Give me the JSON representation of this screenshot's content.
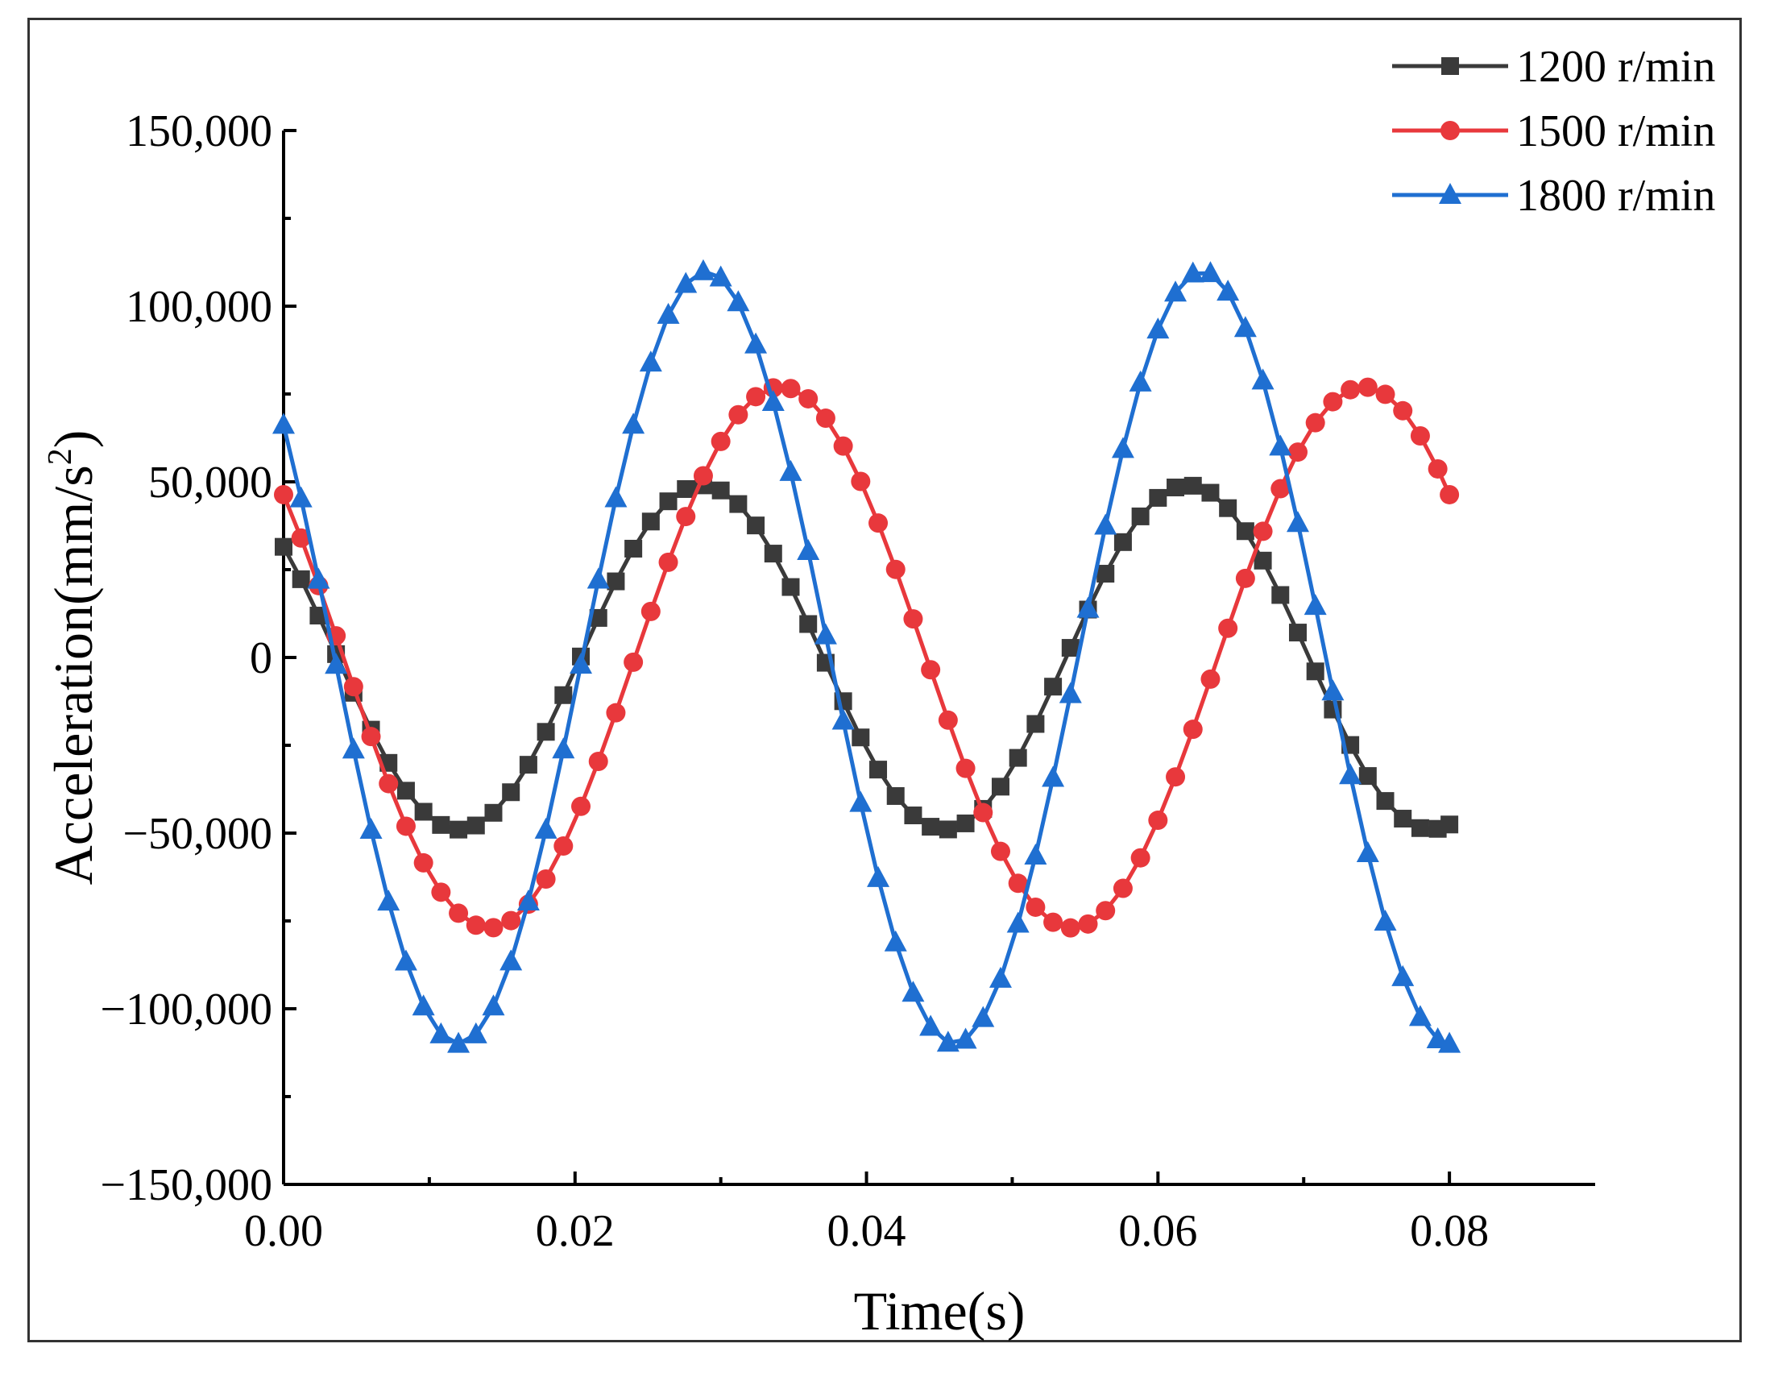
{
  "chart_data": {
    "type": "line",
    "title": "",
    "xlabel": "Time(s)",
    "ylabel_main": "Acceleration(mm/s",
    "ylabel_sup": "2",
    "ylabel_close": ")",
    "xlim": [
      0,
      0.09
    ],
    "ylim": [
      -150000,
      150000
    ],
    "x_ticks": [
      0,
      0.02,
      0.04,
      0.06,
      0.08
    ],
    "x_tick_labels": [
      "0.00",
      "0.02",
      "0.04",
      "0.06",
      "0.08"
    ],
    "y_ticks": [
      -150000,
      -100000,
      -50000,
      0,
      50000,
      100000,
      150000
    ],
    "y_tick_labels": [
      "−150,000",
      "−100,000",
      "−50,000",
      "0",
      "50,000",
      "100,000",
      "150,000"
    ],
    "legend_position": "top-right",
    "grid": false,
    "series": [
      {
        "name": "1200 r/min",
        "color": "#3a3a3a",
        "marker": "square",
        "freq_hz": 30,
        "amplitude": 49000,
        "phase_deg": 50,
        "x": [
          0,
          0.0012,
          0.0024,
          0.0036,
          0.0048,
          0.006,
          0.0072,
          0.0084,
          0.0096,
          0.0108,
          0.012,
          0.0132,
          0.0144,
          0.0156,
          0.0168,
          0.018,
          0.0192,
          0.0204,
          0.0216,
          0.0228,
          0.024,
          0.0252,
          0.0264,
          0.0276,
          0.0288,
          0.03,
          0.0312,
          0.0324,
          0.0336,
          0.0348,
          0.036,
          0.0372,
          0.0384,
          0.0396,
          0.0408,
          0.042,
          0.0432,
          0.0444,
          0.0456,
          0.0468,
          0.048,
          0.0492,
          0.0504,
          0.0516,
          0.0528,
          0.054,
          0.0552,
          0.0564,
          0.0576,
          0.0588,
          0.06,
          0.0612,
          0.0624,
          0.0636,
          0.0648,
          0.066,
          0.0672,
          0.0684,
          0.0696,
          0.0708,
          0.072,
          0.0732,
          0.0744,
          0.0756,
          0.0768,
          0.078,
          0.0792,
          0.08
        ]
      },
      {
        "name": "1500 r/min",
        "color": "#e8383c",
        "marker": "circle",
        "freq_hz": 25,
        "amplitude": 77000,
        "phase_deg": 53,
        "x": [
          0,
          0.0012,
          0.0024,
          0.0036,
          0.0048,
          0.006,
          0.0072,
          0.0084,
          0.0096,
          0.0108,
          0.012,
          0.0132,
          0.0144,
          0.0156,
          0.0168,
          0.018,
          0.0192,
          0.0204,
          0.0216,
          0.0228,
          0.024,
          0.0252,
          0.0264,
          0.0276,
          0.0288,
          0.03,
          0.0312,
          0.0324,
          0.0336,
          0.0348,
          0.036,
          0.0372,
          0.0384,
          0.0396,
          0.0408,
          0.042,
          0.0432,
          0.0444,
          0.0456,
          0.0468,
          0.048,
          0.0492,
          0.0504,
          0.0516,
          0.0528,
          0.054,
          0.0552,
          0.0564,
          0.0576,
          0.0588,
          0.06,
          0.0612,
          0.0624,
          0.0636,
          0.0648,
          0.066,
          0.0672,
          0.0684,
          0.0696,
          0.0708,
          0.072,
          0.0732,
          0.0744,
          0.0756,
          0.0768,
          0.078,
          0.0792,
          0.08
        ]
      },
      {
        "name": "1800 r/min",
        "color": "#1f6fd1",
        "marker": "triangle",
        "freq_hz": 29.4,
        "amplitude": 110000,
        "phase_deg": 53,
        "x": [
          0,
          0.0012,
          0.0024,
          0.0036,
          0.0048,
          0.006,
          0.0072,
          0.0084,
          0.0096,
          0.0108,
          0.012,
          0.0132,
          0.0144,
          0.0156,
          0.0168,
          0.018,
          0.0192,
          0.0204,
          0.0216,
          0.0228,
          0.024,
          0.0252,
          0.0264,
          0.0276,
          0.0288,
          0.03,
          0.0312,
          0.0324,
          0.0336,
          0.0348,
          0.036,
          0.0372,
          0.0384,
          0.0396,
          0.0408,
          0.042,
          0.0432,
          0.0444,
          0.0456,
          0.0468,
          0.048,
          0.0492,
          0.0504,
          0.0516,
          0.0528,
          0.054,
          0.0552,
          0.0564,
          0.0576,
          0.0588,
          0.06,
          0.0612,
          0.0624,
          0.0636,
          0.0648,
          0.066,
          0.0672,
          0.0684,
          0.0696,
          0.0708,
          0.072,
          0.0732,
          0.0744,
          0.0756,
          0.0768,
          0.078,
          0.0792,
          0.08
        ]
      }
    ]
  }
}
